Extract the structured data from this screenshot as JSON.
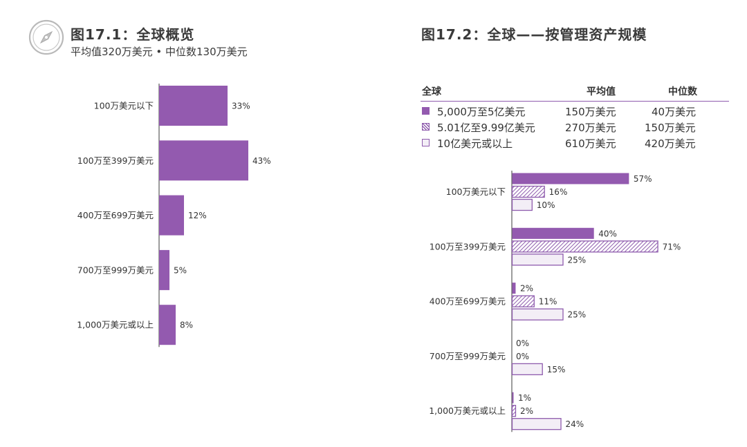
{
  "fig1": {
    "title": "图17.1：全球概览",
    "subtitle": "平均值320万美元 • 中位数130万美元"
  },
  "fig2": {
    "title": "图17.2：全球——按管理资产规模",
    "legend_table": {
      "headers": [
        "全球",
        "平均值",
        "中位数"
      ],
      "rows": [
        {
          "label": "5,000万至5亿美元",
          "mean": "150万美元",
          "median": "40万美元",
          "style": "solid"
        },
        {
          "label": "5.01亿至9.99亿美元",
          "mean": "270万美元",
          "median": "150万美元",
          "style": "hatch"
        },
        {
          "label": "10亿美元或以上",
          "mean": "610万美元",
          "median": "420万美元",
          "style": "outline"
        }
      ]
    }
  },
  "colors": {
    "purple": "#935aaf",
    "outline": "#8e5bad",
    "light_fill": "#f3eef6",
    "axis": "#666666"
  },
  "chart_data": [
    {
      "type": "bar",
      "orientation": "horizontal",
      "categories": [
        "100万美元以下",
        "100万至399万美元",
        "400万至699万美元",
        "700万至999万美元",
        "1,000万美元或以上"
      ],
      "values": [
        33,
        43,
        12,
        5,
        8
      ],
      "labels": [
        "33%",
        "43%",
        "12%",
        "5%",
        "8%"
      ]
    },
    {
      "type": "bar",
      "orientation": "horizontal",
      "categories": [
        "100万美元以下",
        "100万至399万美元",
        "400万至699万美元",
        "700万至999万美元",
        "1,000万美元或以上"
      ],
      "series": [
        {
          "name": "5,000万至5亿美元",
          "style": "solid",
          "values": [
            57,
            40,
            2,
            0,
            1
          ],
          "labels": [
            "57%",
            "40%",
            "2%",
            "0%",
            "1%"
          ]
        },
        {
          "name": "5.01亿至9.99亿美元",
          "style": "hatch",
          "values": [
            16,
            71,
            11,
            0,
            2
          ],
          "labels": [
            "16%",
            "71%",
            "11%",
            "0%",
            "2%"
          ]
        },
        {
          "name": "10亿美元或以上",
          "style": "outline",
          "values": [
            10,
            25,
            25,
            15,
            24
          ],
          "labels": [
            "10%",
            "25%",
            "25%",
            "15%",
            "24%"
          ]
        }
      ]
    }
  ]
}
